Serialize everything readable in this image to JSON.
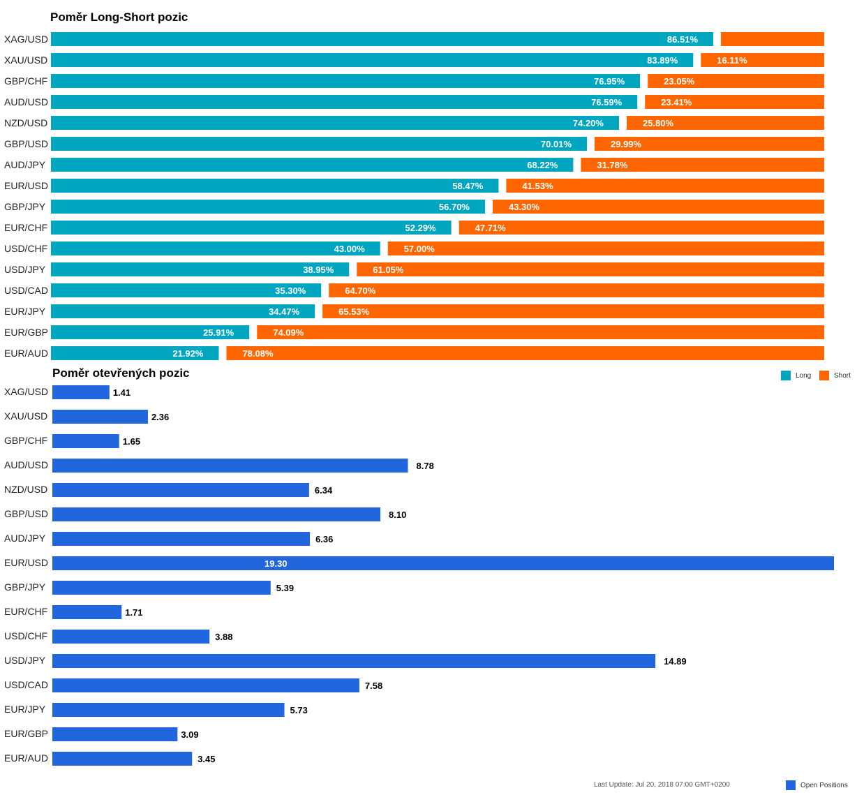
{
  "colors": {
    "long": "#00a5c0",
    "short": "#ff6600",
    "open": "#2266dd"
  },
  "legend": {
    "long_label": "Long",
    "short_label": "Short",
    "open_label": "Open Positions"
  },
  "footer": {
    "last_update": "Last Update: Jul 20, 2018 07:00 GMT+0200"
  },
  "chart_data": [
    {
      "type": "bar",
      "stacked": true,
      "orientation": "horizontal",
      "title": "Poměr Long-Short pozic",
      "categories": [
        "XAG/USD",
        "XAU/USD",
        "GBP/CHF",
        "AUD/USD",
        "NZD/USD",
        "GBP/USD",
        "AUD/JPY",
        "EUR/USD",
        "GBP/JPY",
        "EUR/CHF",
        "USD/CHF",
        "USD/JPY",
        "USD/CAD",
        "EUR/JPY",
        "EUR/GBP",
        "EUR/AUD"
      ],
      "series": [
        {
          "name": "Long",
          "values": [
            86.51,
            83.89,
            76.95,
            76.59,
            74.2,
            70.01,
            68.22,
            58.47,
            56.7,
            52.29,
            43.0,
            38.95,
            35.3,
            34.47,
            25.91,
            21.92
          ],
          "labels": [
            "86.51%",
            "83.89%",
            "76.95%",
            "76.59%",
            "74.20%",
            "70.01%",
            "68.22%",
            "58.47%",
            "56.70%",
            "52.29%",
            "43.00%",
            "38.95%",
            "35.30%",
            "34.47%",
            "25.91%",
            "21.92%"
          ]
        },
        {
          "name": "Short",
          "values": [
            13.49,
            16.11,
            23.05,
            23.41,
            25.8,
            29.99,
            31.78,
            41.53,
            43.3,
            47.71,
            57.0,
            61.05,
            64.7,
            65.53,
            74.09,
            78.08
          ],
          "labels": [
            "",
            "16.11%",
            "23.05%",
            "23.41%",
            "25.80%",
            "29.99%",
            "31.78%",
            "41.53%",
            "43.30%",
            "47.71%",
            "57.00%",
            "61.05%",
            "64.70%",
            "65.53%",
            "74.09%",
            "78.08%"
          ]
        }
      ],
      "xlim": [
        0,
        100
      ],
      "legend_position": "bottom-right"
    },
    {
      "type": "bar",
      "orientation": "horizontal",
      "title": "Poměr otevřených pozic",
      "categories": [
        "XAG/USD",
        "XAU/USD",
        "GBP/CHF",
        "AUD/USD",
        "NZD/USD",
        "GBP/USD",
        "AUD/JPY",
        "EUR/USD",
        "GBP/JPY",
        "EUR/CHF",
        "USD/CHF",
        "USD/JPY",
        "USD/CAD",
        "EUR/JPY",
        "EUR/GBP",
        "EUR/AUD"
      ],
      "series": [
        {
          "name": "Open Positions",
          "values": [
            1.41,
            2.36,
            1.65,
            8.78,
            6.34,
            8.1,
            6.36,
            19.3,
            5.39,
            1.71,
            3.88,
            14.89,
            7.58,
            5.73,
            3.09,
            3.45
          ],
          "labels": [
            "1.41",
            "2.36",
            "1.65",
            "8.78",
            "6.34",
            "8.10",
            "6.36",
            "19.30",
            "5.39",
            "1.71",
            "3.88",
            "14.89",
            "7.58",
            "5.73",
            "3.09",
            "3.45"
          ]
        }
      ],
      "xlim": [
        0,
        19.3
      ],
      "legend_position": "bottom-right"
    }
  ]
}
